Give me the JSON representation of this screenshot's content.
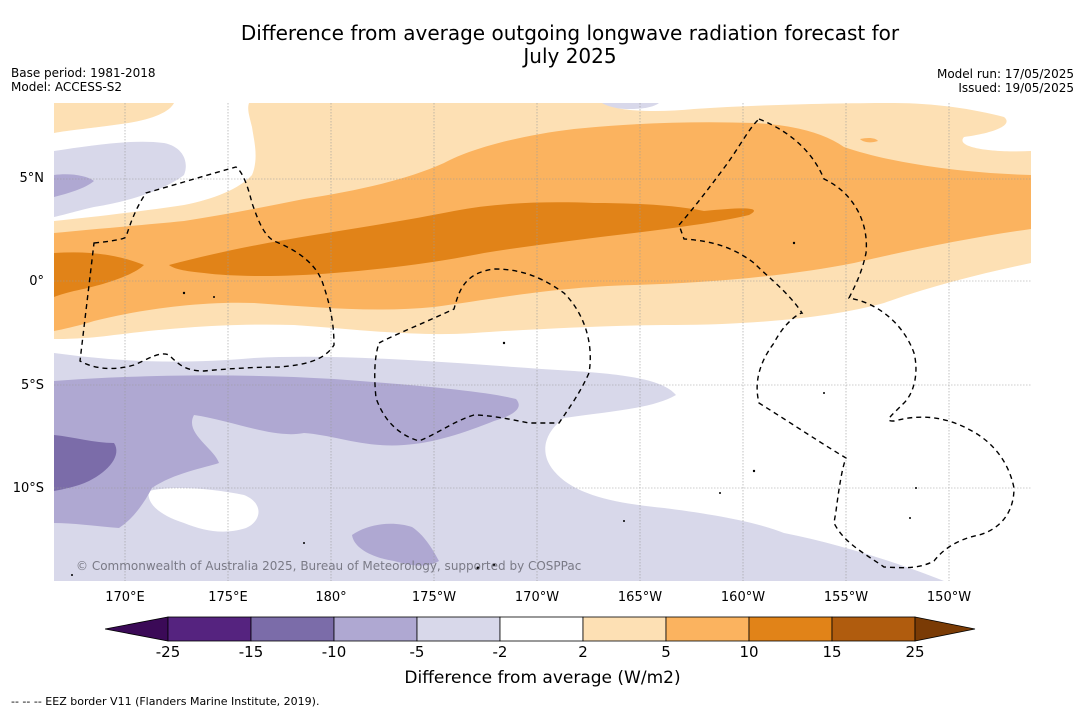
{
  "title_line1": "Difference from average outgoing longwave radiation forecast for",
  "title_line2": "July 2025",
  "base_period": "Base period: 1981-2018",
  "model": "Model: ACCESS-S2",
  "model_run": "Model run: 17/05/2025",
  "issued": "Issued: 19/05/2025",
  "copyright": "© Commonwealth of Australia 2025, Bureau of Meteorology, supported by COSPPac",
  "lat_labels": [
    "5°N",
    "0°",
    "5°S",
    "10°S"
  ],
  "lon_labels": [
    "170°E",
    "175°E",
    "180°",
    "175°W",
    "170°W",
    "165°W",
    "160°W",
    "155°W",
    "150°W"
  ],
  "colorbar": {
    "ticks": [
      "-25",
      "-15",
      "-10",
      "-5",
      "-2",
      "2",
      "5",
      "10",
      "15",
      "25"
    ],
    "colors": [
      "#3b0a57",
      "#55237f",
      "#7b6ca9",
      "#afa8d2",
      "#d8d8ea",
      "#ffffff",
      "#fde0b4",
      "#fbb35f",
      "#e18318",
      "#b05c0e",
      "#7a3b05"
    ],
    "title": "Difference from average (W/m2)"
  },
  "legend_note": "--  --  -- EEZ border V11 (Flanders Marine Institute, 2019).",
  "palette": {
    "purple_dark": "#7b6ca9",
    "purple_mid": "#afa8d2",
    "purple_light": "#d8d8ea",
    "orange_light": "#fde0b4",
    "orange_mid": "#fbb35f",
    "orange_dark": "#e18318"
  }
}
